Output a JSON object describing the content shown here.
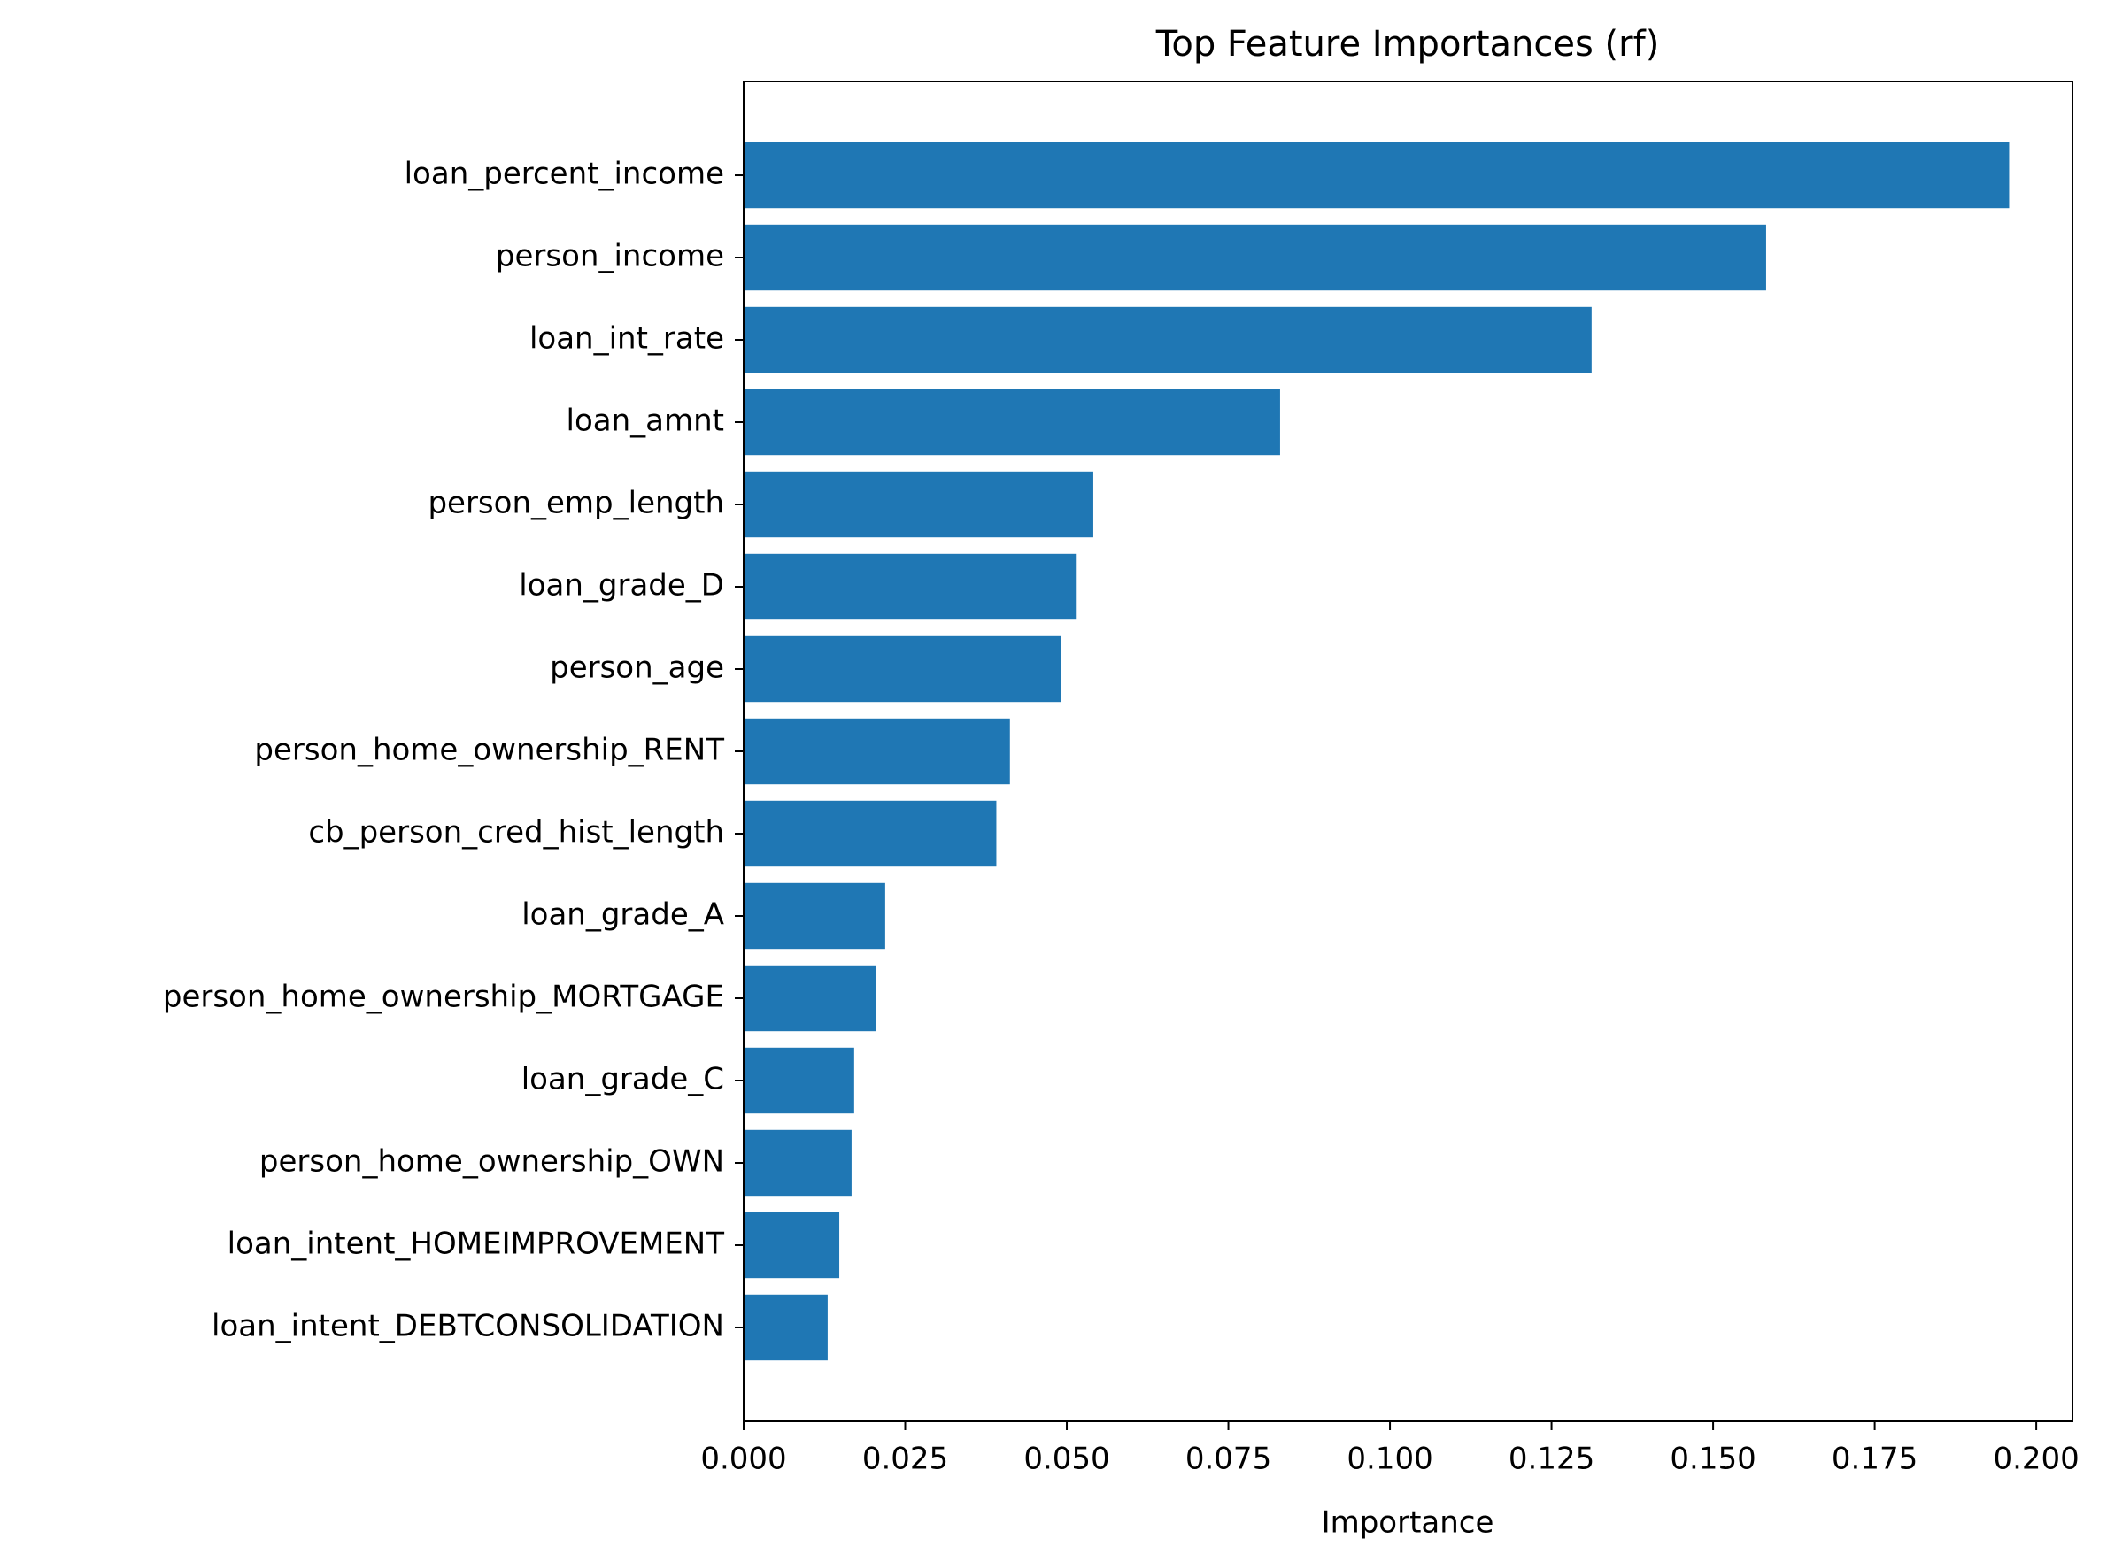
{
  "chart_data": {
    "type": "barh",
    "title": "Top Feature Importances (rf)",
    "x_label": "Importance",
    "categories": [
      "loan_percent_income",
      "person_income",
      "loan_int_rate",
      "loan_amnt",
      "person_emp_length",
      "loan_grade_D",
      "person_age",
      "person_home_ownership_RENT",
      "cb_person_cred_hist_length",
      "loan_grade_A",
      "person_home_ownership_MORTGAGE",
      "loan_grade_C",
      "person_home_ownership_OWN",
      "loan_intent_HOMEIMPROVEMENT",
      "loan_intent_DEBTCONSOLIDATION"
    ],
    "values": [
      0.1958,
      0.1582,
      0.1312,
      0.083,
      0.0541,
      0.0514,
      0.0491,
      0.0412,
      0.0391,
      0.0219,
      0.0205,
      0.0171,
      0.0167,
      0.0148,
      0.013
    ],
    "color": "#1f77b4",
    "xlim": [
      0,
      0.2056
    ],
    "xticks": [
      {
        "value": 0,
        "label": "0.000"
      },
      {
        "value": 0.025,
        "label": "0.025"
      },
      {
        "value": 0.05,
        "label": "0.050"
      },
      {
        "value": 0.075,
        "label": "0.075"
      },
      {
        "value": 0.1,
        "label": "0.100"
      },
      {
        "value": 0.125,
        "label": "0.125"
      },
      {
        "value": 0.15,
        "label": "0.150"
      },
      {
        "value": 0.175,
        "label": "0.175"
      },
      {
        "value": 0.2,
        "label": "0.200"
      }
    ],
    "grid": false
  }
}
